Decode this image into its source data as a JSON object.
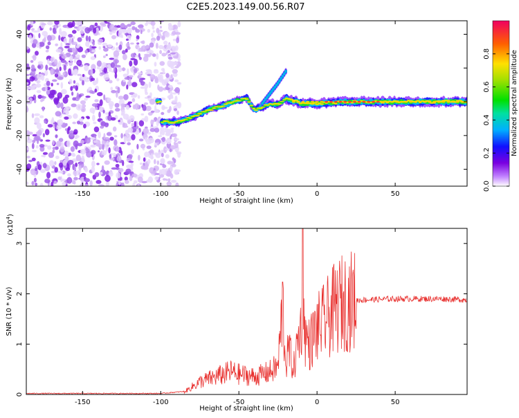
{
  "title": "C2E5.2023.149.00.56.R07",
  "colors": {
    "snr_line": "#e8302e",
    "spectro_purple": "#8a2be2",
    "frame": "#000000"
  },
  "chart_data": [
    {
      "type": "heatmap",
      "title": "C2E5.2023.149.00.56.R07",
      "xlabel": "Height of straight line (km)",
      "ylabel": "Frequency (Hz)",
      "xlim": [
        -186,
        96
      ],
      "ylim": [
        -50,
        48
      ],
      "xticks": [
        -150,
        -100,
        -50,
        0,
        50
      ],
      "xtick_labels": [
        "-150",
        "-100",
        "-50",
        "0",
        "50"
      ],
      "yticks": [
        -40,
        -20,
        0,
        20,
        40
      ],
      "ytick_labels": [
        "-40",
        "-20",
        "0",
        "20",
        "40"
      ],
      "colorbar": {
        "label": "Normalized spectral amplitude",
        "range": [
          0,
          1
        ],
        "ticks": [
          0.0,
          0.2,
          0.4,
          0.6,
          0.8
        ],
        "tick_labels": [
          "0.0",
          "0.2",
          "0.4",
          "0.6",
          "0.8"
        ]
      },
      "signal_track": [
        {
          "x": -100,
          "y": -12
        },
        {
          "x": -90,
          "y": -12
        },
        {
          "x": -80,
          "y": -9
        },
        {
          "x": -70,
          "y": -5
        },
        {
          "x": -60,
          "y": -2
        },
        {
          "x": -50,
          "y": 1
        },
        {
          "x": -45,
          "y": 2
        },
        {
          "x": -40,
          "y": -5
        },
        {
          "x": -35,
          "y": -3
        },
        {
          "x": -30,
          "y": -1
        },
        {
          "x": -25,
          "y": -2
        },
        {
          "x": -20,
          "y": 2
        },
        {
          "x": -10,
          "y": -1
        },
        {
          "x": 0,
          "y": -1
        },
        {
          "x": 20,
          "y": 0
        },
        {
          "x": 50,
          "y": 0
        },
        {
          "x": 96,
          "y": 0
        }
      ],
      "branch_track": [
        {
          "x": -35,
          "y": -1
        },
        {
          "x": -30,
          "y": 5
        },
        {
          "x": -25,
          "y": 11
        },
        {
          "x": -20,
          "y": 18
        }
      ]
    },
    {
      "type": "line",
      "xlabel": "Height of straight line (km)",
      "ylabel": "SNR (10 * v/v)",
      "yscale_label": "(x10",
      "yscale_exponent": "4",
      "yscale_close": ")",
      "xlim": [
        -186,
        96
      ],
      "ylim": [
        0,
        3.3
      ],
      "xticks": [
        -150,
        -100,
        -50,
        0,
        50
      ],
      "xtick_labels": [
        "-150",
        "-100",
        "-50",
        "0",
        "50"
      ],
      "yticks": [
        0,
        1,
        2,
        3
      ],
      "ytick_labels": [
        "0",
        "1",
        "2",
        "3"
      ],
      "series": [
        {
          "color": "#e8302e",
          "x": [
            -186,
            -150,
            -100,
            -85,
            -80,
            -75,
            -70,
            -65,
            -60,
            -55,
            -50,
            -45,
            -40,
            -35,
            -30,
            -25,
            -22,
            -20,
            -18,
            -15,
            -12,
            -10,
            -9,
            -8,
            -5,
            0,
            5,
            10,
            15,
            20,
            25,
            30,
            40,
            50,
            60,
            70,
            80,
            96
          ],
          "y": [
            0.01,
            0.01,
            0.01,
            0.05,
            0.15,
            0.25,
            0.3,
            0.35,
            0.4,
            0.45,
            0.4,
            0.38,
            0.35,
            0.4,
            0.45,
            0.55,
            1.8,
            0.6,
            0.9,
            0.5,
            1.1,
            1.4,
            3.3,
            1.2,
            1.0,
            1.3,
            1.45,
            1.65,
            1.8,
            1.85,
            1.87,
            1.88,
            1.89,
            1.9,
            1.9,
            1.9,
            1.9,
            1.88
          ]
        }
      ]
    }
  ]
}
